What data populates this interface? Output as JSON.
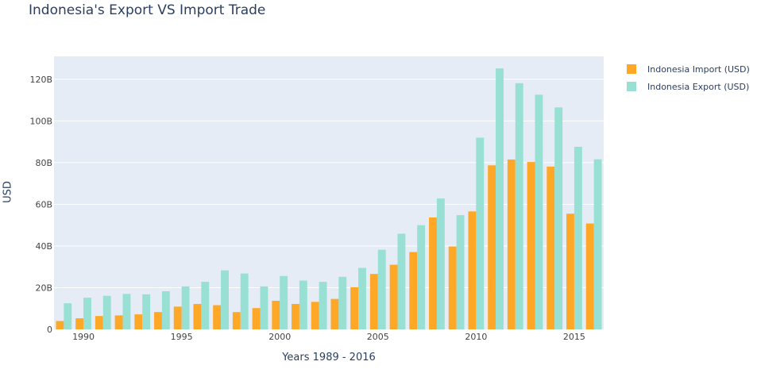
{
  "chart_data": {
    "type": "bar",
    "title": "Indonesia's Export VS Import Trade",
    "xlabel": "Years 1989 - 2016",
    "ylabel": "USD",
    "x": [
      1989,
      1990,
      1991,
      1992,
      1993,
      1994,
      1995,
      1996,
      1997,
      1998,
      1999,
      2000,
      2001,
      2002,
      2003,
      2004,
      2005,
      2006,
      2007,
      2008,
      2009,
      2010,
      2011,
      2012,
      2013,
      2014,
      2015,
      2016
    ],
    "xticks": [
      1990,
      1995,
      2000,
      2005,
      2010,
      2015
    ],
    "xtick_labels": [
      "1990",
      "1995",
      "2000",
      "2005",
      "2010",
      "2015"
    ],
    "ylim": [
      0,
      131
    ],
    "yticks": [
      0,
      20,
      40,
      60,
      80,
      100,
      120
    ],
    "ytick_labels": [
      "0",
      "20B",
      "40B",
      "60B",
      "80B",
      "100B",
      "120B"
    ],
    "grid": true,
    "legend_position": "top-right",
    "series": [
      {
        "name": "Indonesia Import (USD)",
        "color": "#ffa726",
        "values": [
          4,
          5.3,
          6.4,
          6.7,
          7.2,
          8.3,
          10.9,
          12.2,
          11.6,
          8.3,
          10.2,
          13.7,
          12.2,
          13.2,
          14.6,
          20.2,
          26.6,
          31,
          37.1,
          53.7,
          39.8,
          56.6,
          78.7,
          81.5,
          80.3,
          78.1,
          55.5,
          50.8
        ]
      },
      {
        "name": "Indonesia Export (USD)",
        "color": "#97e0d3",
        "values": [
          12.5,
          15.2,
          16.1,
          17,
          16.8,
          18.3,
          20.6,
          22.8,
          28.3,
          26.8,
          20.6,
          25.6,
          23.4,
          22.8,
          25.2,
          29.5,
          38.2,
          45.9,
          50,
          62.8,
          54.8,
          92,
          125.2,
          118.1,
          112.6,
          106.5,
          87.6,
          81.6
        ]
      }
    ]
  }
}
